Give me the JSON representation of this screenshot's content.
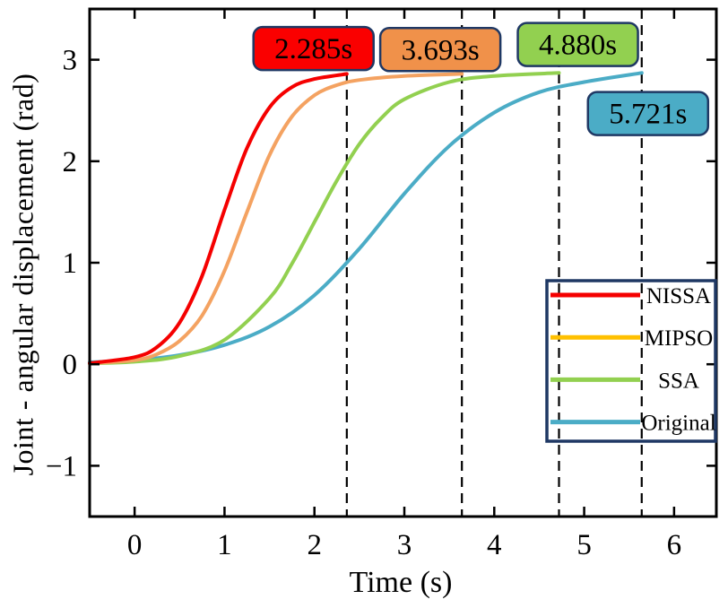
{
  "chart_data": {
    "type": "line",
    "title": "",
    "xlabel": "Time (s)",
    "ylabel": "Joint - angular displacement (rad)",
    "xlim": [
      -0.5,
      6.47
    ],
    "ylim": [
      -1.5,
      3.5
    ],
    "xticks": [
      "0",
      "1",
      "2",
      "3",
      "4",
      "5",
      "6"
    ],
    "xtick_values": [
      0,
      1,
      2,
      3,
      4,
      5,
      6
    ],
    "yticks": [
      "−1",
      "0",
      "1",
      "2",
      "3"
    ],
    "ytick_values": [
      -1,
      0,
      1,
      2,
      3
    ],
    "grid": false,
    "legend_position": "lower right",
    "series": [
      {
        "name": "NISSA",
        "color": "#f50000",
        "legend_color": "#f50000",
        "settle_time_label": "2.285s",
        "points": [
          [
            -0.5,
            0.01
          ],
          [
            0,
            0.07
          ],
          [
            0.25,
            0.17
          ],
          [
            0.5,
            0.41
          ],
          [
            0.75,
            0.87
          ],
          [
            1.0,
            1.52
          ],
          [
            1.25,
            2.13
          ],
          [
            1.5,
            2.53
          ],
          [
            1.75,
            2.73
          ],
          [
            2.0,
            2.81
          ],
          [
            2.36,
            2.86
          ]
        ]
      },
      {
        "name": "MIPSO",
        "color": "#f4a261",
        "legend_color": "#ffc000",
        "settle_time_label": "3.693s",
        "points": [
          [
            -0.5,
            0.008
          ],
          [
            0,
            0.04
          ],
          [
            0.25,
            0.1
          ],
          [
            0.5,
            0.23
          ],
          [
            0.75,
            0.48
          ],
          [
            1.0,
            0.92
          ],
          [
            1.25,
            1.5
          ],
          [
            1.5,
            2.06
          ],
          [
            1.75,
            2.44
          ],
          [
            2.0,
            2.65
          ],
          [
            2.25,
            2.75
          ],
          [
            2.5,
            2.8
          ],
          [
            3.0,
            2.84
          ],
          [
            3.64,
            2.86
          ]
        ]
      },
      {
        "name": "SSA",
        "color": "#92d050",
        "legend_color": "#92d050",
        "settle_time_label": "4.880s",
        "points": [
          [
            -0.5,
            0.008
          ],
          [
            0,
            0.025
          ],
          [
            0.5,
            0.08
          ],
          [
            1.0,
            0.24
          ],
          [
            1.5,
            0.65
          ],
          [
            1.75,
            0.99
          ],
          [
            2.0,
            1.4
          ],
          [
            2.25,
            1.81
          ],
          [
            2.5,
            2.17
          ],
          [
            2.75,
            2.43
          ],
          [
            3.0,
            2.61
          ],
          [
            3.5,
            2.78
          ],
          [
            4.0,
            2.84
          ],
          [
            4.72,
            2.87
          ]
        ]
      },
      {
        "name": "Original",
        "color": "#4bacc6",
        "legend_color": "#4bacc6",
        "settle_time_label": "5.721s",
        "points": [
          [
            -0.5,
            0.02
          ],
          [
            0,
            0.04
          ],
          [
            0.5,
            0.09
          ],
          [
            1.0,
            0.19
          ],
          [
            1.5,
            0.37
          ],
          [
            2.0,
            0.68
          ],
          [
            2.5,
            1.14
          ],
          [
            3.0,
            1.68
          ],
          [
            3.5,
            2.15
          ],
          [
            4.0,
            2.48
          ],
          [
            4.5,
            2.68
          ],
          [
            5.0,
            2.78
          ],
          [
            5.64,
            2.87
          ]
        ]
      }
    ],
    "annotations": [
      {
        "text": "2.285s",
        "fill": "#fa0000",
        "x": 1.99,
        "y": 3.11,
        "vline_x": 2.36
      },
      {
        "text": "3.693s",
        "fill": "#f0914a",
        "x": 3.4,
        "y": 3.1,
        "vline_x": 3.64
      },
      {
        "text": "4.880s",
        "fill": "#92d050",
        "x": 4.93,
        "y": 3.15,
        "vline_x": 4.72
      },
      {
        "text": "5.721s",
        "fill": "#4bacc6",
        "x": 5.71,
        "y": 2.47,
        "vline_x": 5.64
      }
    ],
    "colors": {
      "axis": "#000000",
      "dashed_line": "#000000",
      "annotation_border": "#1f3864",
      "legend_border": "#1f3864",
      "text": "#000000",
      "background": "#ffffff"
    }
  }
}
